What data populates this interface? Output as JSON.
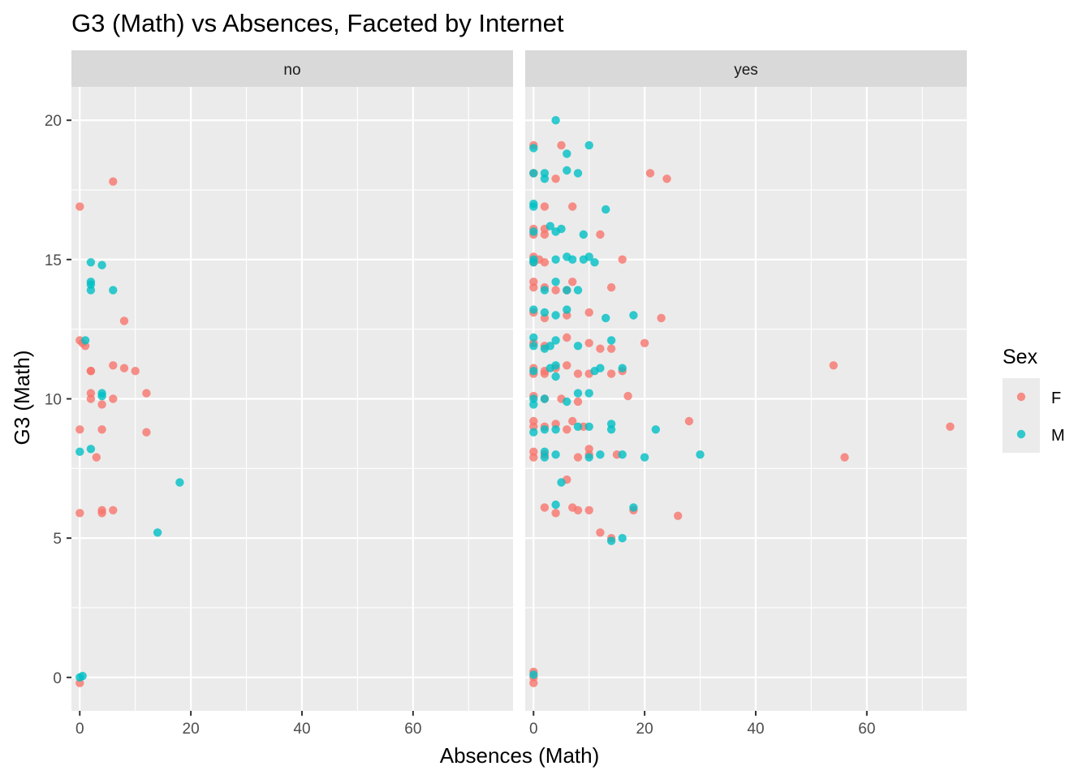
{
  "chart_data": {
    "type": "scatter",
    "title": "G3 (Math) vs Absences, Faceted by Internet",
    "xlabel": "Absences (Math)",
    "ylabel": "G3 (Math)",
    "xlim": [
      -1.5,
      78
    ],
    "ylim": [
      -1.2,
      21.2
    ],
    "x_ticks": [
      0,
      20,
      40,
      60
    ],
    "y_ticks": [
      0,
      5,
      10,
      15,
      20
    ],
    "grid": true,
    "legend": {
      "title": "Sex",
      "position": "right",
      "entries": [
        {
          "label": "F",
          "color": "#F8766D"
        },
        {
          "label": "M",
          "color": "#00BFC4"
        }
      ]
    },
    "facets": [
      {
        "label": "no",
        "series": [
          {
            "name": "F",
            "color": "#F8766D",
            "points": [
              [
                0,
                16.9
              ],
              [
                6,
                17.8
              ],
              [
                0,
                12.1
              ],
              [
                0.5,
                12.0
              ],
              [
                1,
                11.9
              ],
              [
                2,
                11.0
              ],
              [
                2,
                11.0
              ],
              [
                6,
                11.2
              ],
              [
                8,
                11.1
              ],
              [
                10,
                11.0
              ],
              [
                2,
                10.2
              ],
              [
                2,
                10.0
              ],
              [
                4,
                9.8
              ],
              [
                6,
                10.0
              ],
              [
                12,
                10.2
              ],
              [
                8,
                12.8
              ],
              [
                0,
                8.9
              ],
              [
                4,
                8.9
              ],
              [
                3,
                7.9
              ],
              [
                12,
                8.8
              ],
              [
                0,
                5.9
              ],
              [
                4,
                5.9
              ],
              [
                4,
                6.0
              ],
              [
                6,
                6.0
              ],
              [
                0,
                -0.2
              ]
            ]
          },
          {
            "name": "M",
            "color": "#00BFC4",
            "points": [
              [
                2,
                14.9
              ],
              [
                4,
                14.8
              ],
              [
                2,
                14.2
              ],
              [
                2,
                14.1
              ],
              [
                2,
                13.9
              ],
              [
                6,
                13.9
              ],
              [
                1,
                12.1
              ],
              [
                4,
                10.2
              ],
              [
                4,
                10.1
              ],
              [
                0,
                8.1
              ],
              [
                2,
                8.2
              ],
              [
                18,
                7.0
              ],
              [
                14,
                5.2
              ],
              [
                0,
                0.0
              ],
              [
                0.5,
                0.05
              ]
            ]
          }
        ]
      },
      {
        "label": "yes",
        "series": [
          {
            "name": "F",
            "color": "#F8766D",
            "points": [
              [
                0,
                19.1
              ],
              [
                5,
                19.1
              ],
              [
                0,
                18.1
              ],
              [
                4,
                17.9
              ],
              [
                21,
                18.1
              ],
              [
                24,
                17.9
              ],
              [
                2,
                16.9
              ],
              [
                7,
                16.9
              ],
              [
                0,
                16.1
              ],
              [
                2,
                16.1
              ],
              [
                0,
                15.9
              ],
              [
                2,
                15.9
              ],
              [
                12,
                15.9
              ],
              [
                0,
                15.1
              ],
              [
                0,
                14.9
              ],
              [
                1,
                15.0
              ],
              [
                2,
                14.9
              ],
              [
                16,
                15.0
              ],
              [
                0,
                14.2
              ],
              [
                0,
                14.0
              ],
              [
                2,
                14.0
              ],
              [
                4,
                13.9
              ],
              [
                6,
                13.9
              ],
              [
                7,
                14.2
              ],
              [
                14,
                14.0
              ],
              [
                0,
                13.1
              ],
              [
                2,
                12.9
              ],
              [
                6,
                13.0
              ],
              [
                10,
                13.1
              ],
              [
                23,
                12.9
              ],
              [
                0,
                12.0
              ],
              [
                2,
                11.9
              ],
              [
                6,
                12.2
              ],
              [
                10,
                12.0
              ],
              [
                12,
                11.8
              ],
              [
                14,
                11.8
              ],
              [
                20,
                12.0
              ],
              [
                0,
                11.1
              ],
              [
                2,
                11.0
              ],
              [
                4,
                11.1
              ],
              [
                6,
                11.2
              ],
              [
                0,
                10.9
              ],
              [
                2,
                10.9
              ],
              [
                8,
                10.9
              ],
              [
                10,
                10.9
              ],
              [
                14,
                10.9
              ],
              [
                16,
                11.0
              ],
              [
                54,
                11.2
              ],
              [
                0,
                10.1
              ],
              [
                2,
                10.0
              ],
              [
                5,
                10.0
              ],
              [
                8,
                9.9
              ],
              [
                17,
                10.1
              ],
              [
                0,
                9.2
              ],
              [
                4,
                9.1
              ],
              [
                7,
                9.2
              ],
              [
                0,
                9.0
              ],
              [
                2,
                9.0
              ],
              [
                6,
                8.9
              ],
              [
                9,
                9.0
              ],
              [
                28,
                9.2
              ],
              [
                75,
                9.0
              ],
              [
                0,
                8.1
              ],
              [
                0,
                7.9
              ],
              [
                2,
                8.0
              ],
              [
                8,
                7.9
              ],
              [
                10,
                8.2
              ],
              [
                10,
                8.0
              ],
              [
                15,
                8.0
              ],
              [
                56,
                7.9
              ],
              [
                6,
                7.1
              ],
              [
                2,
                6.1
              ],
              [
                4,
                5.9
              ],
              [
                7,
                6.1
              ],
              [
                8,
                6.0
              ],
              [
                10,
                6.0
              ],
              [
                18,
                6.0
              ],
              [
                26,
                5.8
              ],
              [
                12,
                5.2
              ],
              [
                14,
                5.0
              ],
              [
                0,
                0.2
              ],
              [
                0,
                0.0
              ],
              [
                0,
                -0.2
              ]
            ]
          },
          {
            "name": "M",
            "color": "#00BFC4",
            "points": [
              [
                4,
                20.0
              ],
              [
                0,
                19.0
              ],
              [
                10,
                19.1
              ],
              [
                6,
                18.8
              ],
              [
                0,
                18.1
              ],
              [
                2,
                18.1
              ],
              [
                2,
                17.9
              ],
              [
                6,
                18.2
              ],
              [
                8,
                18.1
              ],
              [
                0,
                17.0
              ],
              [
                0,
                16.9
              ],
              [
                13,
                16.8
              ],
              [
                0,
                16.0
              ],
              [
                3,
                16.2
              ],
              [
                4,
                16.0
              ],
              [
                5,
                16.1
              ],
              [
                9,
                15.9
              ],
              [
                0,
                15.0
              ],
              [
                0,
                14.9
              ],
              [
                4,
                15.0
              ],
              [
                6,
                15.1
              ],
              [
                7,
                15.0
              ],
              [
                9,
                15.0
              ],
              [
                10,
                15.1
              ],
              [
                11,
                14.9
              ],
              [
                4,
                14.2
              ],
              [
                2,
                13.9
              ],
              [
                6,
                13.9
              ],
              [
                8,
                13.9
              ],
              [
                0,
                13.2
              ],
              [
                2,
                13.1
              ],
              [
                4,
                13.0
              ],
              [
                6,
                13.2
              ],
              [
                13,
                12.9
              ],
              [
                18,
                13.0
              ],
              [
                0,
                12.2
              ],
              [
                0,
                11.9
              ],
              [
                2,
                11.8
              ],
              [
                3,
                11.9
              ],
              [
                4,
                12.1
              ],
              [
                8,
                11.9
              ],
              [
                14,
                12.1
              ],
              [
                0,
                11.0
              ],
              [
                3,
                11.1
              ],
              [
                4,
                11.2
              ],
              [
                4,
                10.8
              ],
              [
                11,
                11.0
              ],
              [
                12,
                11.1
              ],
              [
                16,
                11.1
              ],
              [
                0,
                10.0
              ],
              [
                0,
                9.8
              ],
              [
                2,
                10.0
              ],
              [
                6,
                9.9
              ],
              [
                8,
                10.2
              ],
              [
                10,
                10.2
              ],
              [
                0,
                8.8
              ],
              [
                2,
                8.9
              ],
              [
                4,
                8.9
              ],
              [
                8,
                9.0
              ],
              [
                10,
                9.0
              ],
              [
                14,
                9.1
              ],
              [
                14,
                8.9
              ],
              [
                22,
                8.9
              ],
              [
                2,
                8.1
              ],
              [
                2,
                7.9
              ],
              [
                4,
                8.0
              ],
              [
                10,
                7.9
              ],
              [
                12,
                8.0
              ],
              [
                16,
                8.0
              ],
              [
                20,
                7.9
              ],
              [
                30,
                8.0
              ],
              [
                5,
                7.0
              ],
              [
                4,
                6.2
              ],
              [
                18,
                6.1
              ],
              [
                14,
                4.9
              ],
              [
                16,
                5.0
              ],
              [
                0,
                0.1
              ]
            ]
          }
        ]
      }
    ]
  }
}
